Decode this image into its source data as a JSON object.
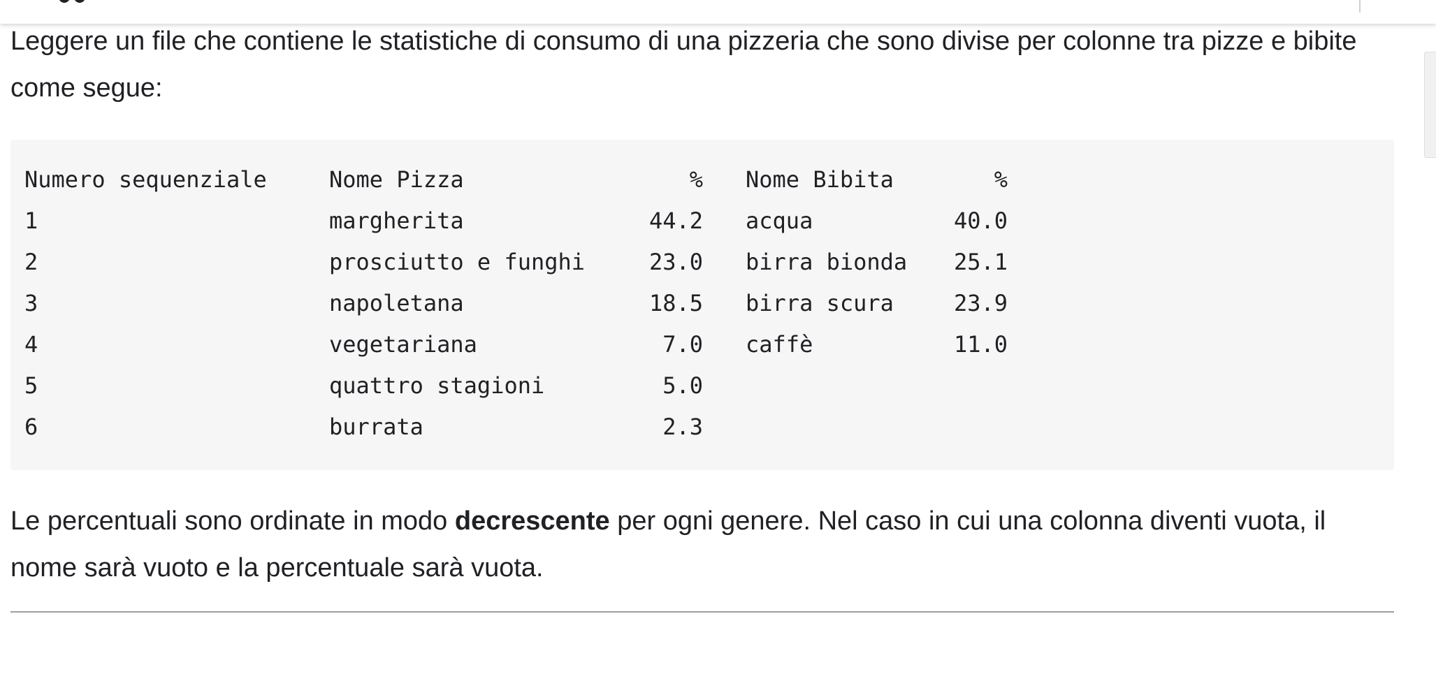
{
  "intro_text": "Leggere un file che contiene le statistiche di consumo di una pizzeria che sono divise per colonne tra pizze e bibite come segue:",
  "table": {
    "headers": {
      "num": "Numero sequenziale",
      "pizza": "Nome Pizza",
      "pizza_pct": "%",
      "drink": "Nome Bibita",
      "drink_pct": "%"
    },
    "rows": [
      {
        "num": "1",
        "pizza": "margherita",
        "pizza_pct": "44.2",
        "drink": "acqua",
        "drink_pct": "40.0"
      },
      {
        "num": "2",
        "pizza": "prosciutto e funghi",
        "pizza_pct": "23.0",
        "drink": "birra bionda",
        "drink_pct": "25.1"
      },
      {
        "num": "3",
        "pizza": "napoletana",
        "pizza_pct": "18.5",
        "drink": "birra scura",
        "drink_pct": "23.9"
      },
      {
        "num": "4",
        "pizza": "vegetariana",
        "pizza_pct": "7.0",
        "drink": "caffè",
        "drink_pct": "11.0"
      },
      {
        "num": "5",
        "pizza": "quattro stagioni",
        "pizza_pct": "5.0",
        "drink": "",
        "drink_pct": ""
      },
      {
        "num": "6",
        "pizza": "burrata",
        "pizza_pct": "2.3",
        "drink": "",
        "drink_pct": ""
      }
    ]
  },
  "after_text": {
    "part1": "Le percentuali sono ordinate in modo ",
    "emphasis": "decrescente",
    "part2": " per ogni genere. Nel caso in cui una colonna diventi vuota, il nome sarà vuoto e la percentuale sarà vuota."
  }
}
